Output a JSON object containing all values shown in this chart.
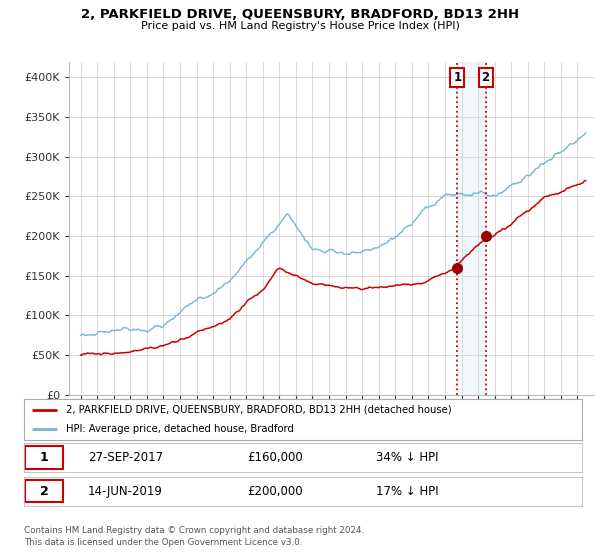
{
  "title": "2, PARKFIELD DRIVE, QUEENSBURY, BRADFORD, BD13 2HH",
  "subtitle": "Price paid vs. HM Land Registry's House Price Index (HPI)",
  "legend_label1": "2, PARKFIELD DRIVE, QUEENSBURY, BRADFORD, BD13 2HH (detached house)",
  "legend_label2": "HPI: Average price, detached house, Bradford",
  "transaction1_date": "27-SEP-2017",
  "transaction1_price": "£160,000",
  "transaction1_note": "34% ↓ HPI",
  "transaction2_date": "14-JUN-2019",
  "transaction2_price": "£200,000",
  "transaction2_note": "17% ↓ HPI",
  "footer": "Contains HM Land Registry data © Crown copyright and database right 2024.\nThis data is licensed under the Open Government Licence v3.0.",
  "hpi_color": "#7ab3d4",
  "property_color": "#cc0000",
  "vline_color": "#cc0000",
  "marker_color": "#990000",
  "ylim": [
    0,
    420000
  ],
  "yticks": [
    0,
    50000,
    100000,
    150000,
    200000,
    250000,
    300000,
    350000,
    400000
  ],
  "ytick_labels": [
    "£0",
    "£50K",
    "£100K",
    "£150K",
    "£200K",
    "£250K",
    "£300K",
    "£350K",
    "£400K"
  ],
  "bg_color": "#ffffff",
  "grid_color": "#cccccc",
  "transaction1_year": 2017.75,
  "transaction2_year": 2019.45,
  "transaction1_prop_value": 160000,
  "transaction2_prop_value": 200000,
  "box_color": "#cc0000",
  "span_color": "#cce0f0",
  "xtick_start": 1995,
  "xtick_end": 2026,
  "xlim_left": 1994.3,
  "xlim_right": 2026.0
}
